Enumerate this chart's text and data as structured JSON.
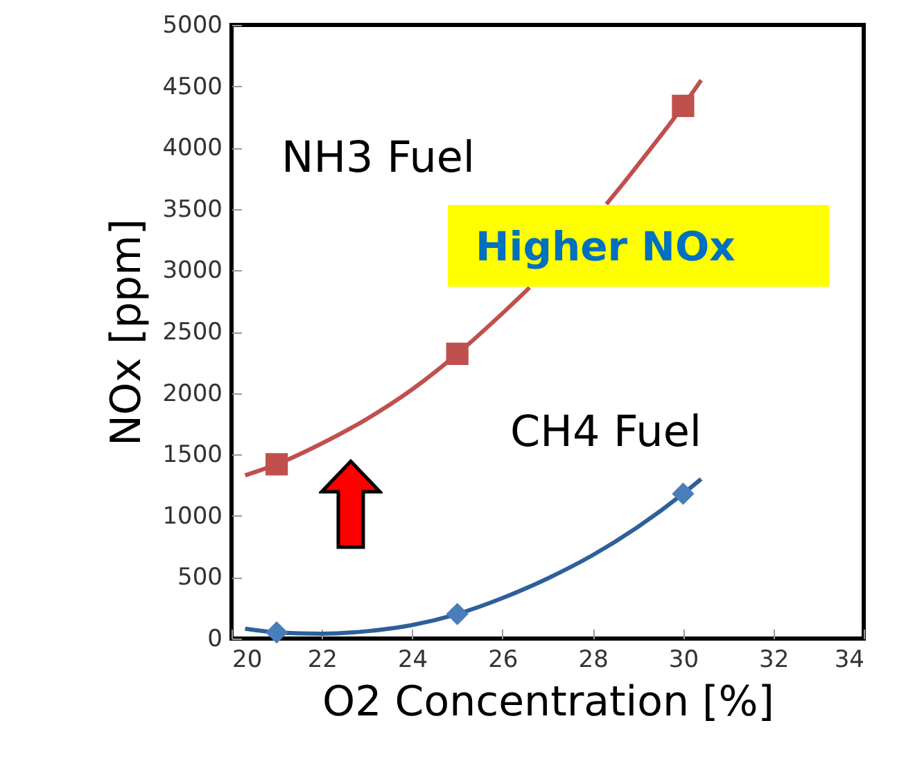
{
  "chart_data": {
    "type": "scatter",
    "xlabel": "O2 Concentration [%]",
    "ylabel": "NOx [ppm]",
    "xlim": [
      20,
      34
    ],
    "xticks": [
      20,
      22,
      24,
      26,
      28,
      30,
      32,
      34
    ],
    "ylim": [
      0,
      5000
    ],
    "yticks": [
      0,
      500,
      1000,
      1500,
      2000,
      2500,
      3000,
      3500,
      4000,
      4500,
      5000
    ],
    "grid": false,
    "annotations": [
      "NH3 Fuel",
      "Higher NOx",
      "CH4 Fuel"
    ],
    "series": [
      {
        "type": "line",
        "color": "#c0504d",
        "marker": "none",
        "x": [
          20.3,
          21,
          22,
          23,
          24,
          25,
          26,
          26.6,
          27.5,
          28.3,
          28.7,
          29,
          30,
          30.4
        ],
        "values": [
          1330,
          1420,
          1590,
          1790,
          2030,
          2320,
          2650,
          2860,
          null,
          3540,
          3720,
          3860,
          4340,
          4550
        ]
      },
      {
        "type": "line",
        "color": "#2e5f9a",
        "marker": "none",
        "x": [
          20.3,
          21,
          22,
          23,
          24,
          25,
          26,
          27,
          28,
          29,
          30,
          30.4
        ],
        "values": [
          80,
          50,
          40,
          60,
          110,
          200,
          330,
          490,
          680,
          910,
          1180,
          1300
        ]
      },
      {
        "color": "#c0504d",
        "marker": "square",
        "x": [
          21,
          25,
          30
        ],
        "values": [
          1420,
          2320,
          4340
        ]
      },
      {
        "color": "#4a7ebb",
        "marker": "diamond",
        "x": [
          21,
          25,
          30
        ],
        "values": [
          50,
          200,
          1180
        ]
      }
    ]
  }
}
